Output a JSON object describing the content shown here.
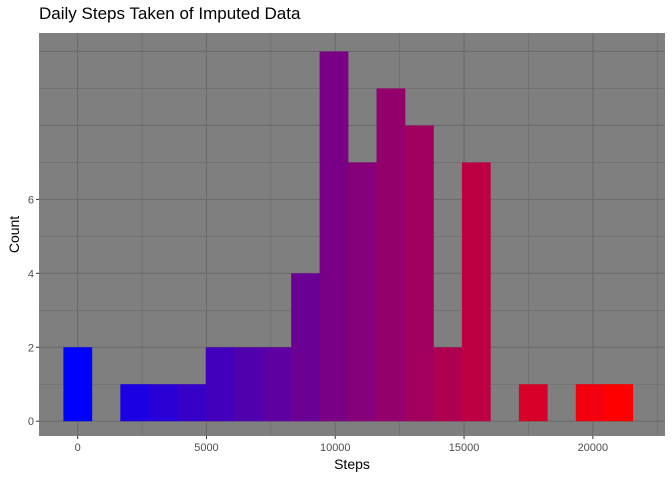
{
  "chart_data": {
    "type": "bar",
    "title": "Daily Steps Taken of Imputed Data",
    "xlabel": "Steps",
    "ylabel": "Count",
    "bin_width": 1105,
    "bins": [
      {
        "center": 0,
        "count": 2
      },
      {
        "center": 2210,
        "count": 1
      },
      {
        "center": 3315,
        "count": 1
      },
      {
        "center": 4420,
        "count": 1
      },
      {
        "center": 5525,
        "count": 2
      },
      {
        "center": 6630,
        "count": 2
      },
      {
        "center": 7735,
        "count": 2
      },
      {
        "center": 8840,
        "count": 4
      },
      {
        "center": 9945,
        "count": 10
      },
      {
        "center": 11050,
        "count": 7
      },
      {
        "center": 12155,
        "count": 9
      },
      {
        "center": 13260,
        "count": 8
      },
      {
        "center": 14365,
        "count": 2
      },
      {
        "center": 15470,
        "count": 7
      },
      {
        "center": 17680,
        "count": 1
      },
      {
        "center": 19890,
        "count": 1
      },
      {
        "center": 20995,
        "count": 1
      }
    ],
    "xlim": [
      -1500,
      22800
    ],
    "ylim": [
      -0.4,
      10.5
    ],
    "xticks": [
      0,
      5000,
      10000,
      15000,
      20000
    ],
    "yticks": [
      0,
      2,
      4,
      6
    ],
    "fill_gradient": {
      "low": "#0000FF",
      "high": "#FF0000"
    },
    "panel_background": "#7F7F7F",
    "grid": true,
    "legend": "none"
  }
}
